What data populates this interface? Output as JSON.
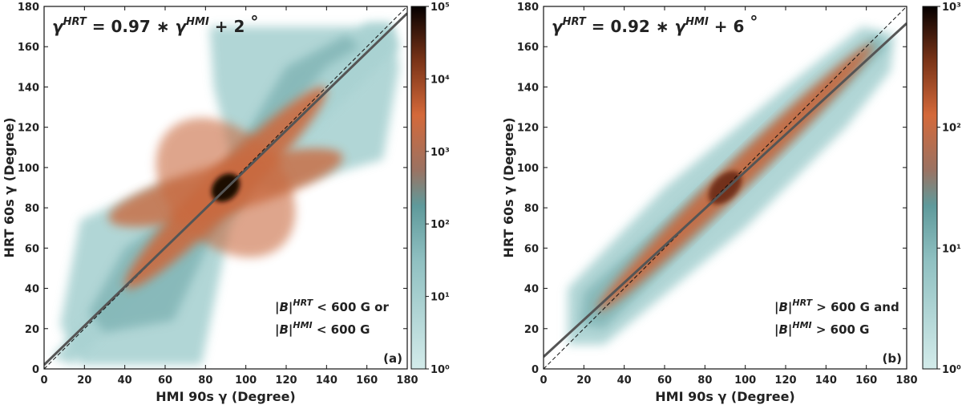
{
  "chart_data": [
    {
      "type": "hist2d",
      "panel_label": "(a)",
      "xlabel": "HMI 90s γ (Degree)",
      "ylabel": "HRT 60s γ (Degree)",
      "xlim": [
        0,
        180
      ],
      "xticks": [
        0,
        20,
        40,
        60,
        80,
        100,
        120,
        140,
        160,
        180
      ],
      "ylim": [
        0,
        180
      ],
      "yticks": [
        0,
        20,
        40,
        60,
        80,
        100,
        120,
        140,
        160,
        180
      ],
      "equation": {
        "lhs": "γ",
        "lhs_sup": "HRT",
        "equals": " = ",
        "slope": 0.97,
        "times": " ∗ ",
        "rhs": "γ",
        "rhs_sup": "HMI",
        "plus": " + ",
        "intercept": 2,
        "unit": " °"
      },
      "annotation": [
        {
          "base": "|B|",
          "sup": "HRT",
          "rest": " < 600 G or"
        },
        {
          "base": "|B|",
          "sup": "HMI",
          "rest": " < 600 G"
        }
      ],
      "colorbar": {
        "log": true,
        "lim": [
          1,
          100000
        ],
        "ticks": [
          {
            "value": 1,
            "label": "10⁰"
          },
          {
            "value": 10,
            "label": "10¹"
          },
          {
            "value": 100,
            "label": "10²"
          },
          {
            "value": 1000,
            "label": "10³"
          },
          {
            "value": 10000,
            "label": "10⁴"
          },
          {
            "value": 100000,
            "label": "10⁵"
          }
        ]
      }
    },
    {
      "type": "hist2d",
      "panel_label": "(b)",
      "xlabel": "HMI 90s γ (Degree)",
      "ylabel": "HRT 60s γ (Degree)",
      "xlim": [
        0,
        180
      ],
      "xticks": [
        0,
        20,
        40,
        60,
        80,
        100,
        120,
        140,
        160,
        180
      ],
      "ylim": [
        0,
        180
      ],
      "yticks": [
        0,
        20,
        40,
        60,
        80,
        100,
        120,
        140,
        160,
        180
      ],
      "equation": {
        "lhs": "γ",
        "lhs_sup": "HRT",
        "equals": " = ",
        "slope": 0.92,
        "times": " ∗ ",
        "rhs": "γ",
        "rhs_sup": "HMI",
        "plus": " + ",
        "intercept": 6,
        "unit": " °"
      },
      "annotation": [
        {
          "base": "|B|",
          "sup": "HRT",
          "rest": " > 600 G and"
        },
        {
          "base": "|B|",
          "sup": "HMI",
          "rest": " > 600 G"
        }
      ],
      "colorbar": {
        "log": true,
        "lim": [
          1,
          1000
        ],
        "ticks": [
          {
            "value": 1,
            "label": "10⁰"
          },
          {
            "value": 10,
            "label": "10¹"
          },
          {
            "value": 100,
            "label": "10²"
          },
          {
            "value": 1000,
            "label": "10³"
          }
        ]
      }
    }
  ]
}
